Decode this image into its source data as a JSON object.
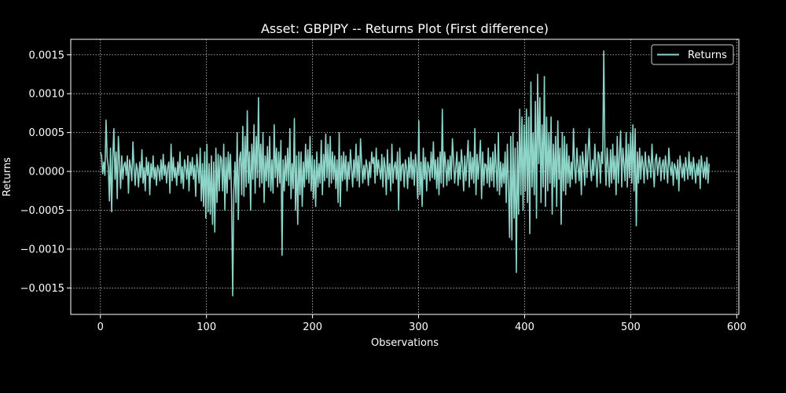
{
  "chart_data": {
    "type": "line",
    "title": "Asset: GBPJPY -- Returns Plot (First difference)",
    "xlabel": "Observations",
    "ylabel": "Returns",
    "xlim": [
      -28,
      602
    ],
    "ylim": [
      -0.00184,
      0.0017
    ],
    "xticks": [
      0,
      100,
      200,
      300,
      400,
      500,
      600
    ],
    "xtick_labels": [
      "0",
      "100",
      "200",
      "300",
      "400",
      "500",
      "600"
    ],
    "yticks": [
      -0.0015,
      -0.001,
      -0.0005,
      0.0,
      0.0005,
      0.001,
      0.0015
    ],
    "ytick_labels": [
      "−0.0015",
      "−0.0010",
      "−0.0005",
      "0.0000",
      "0.0005",
      "0.0010",
      "0.0015"
    ],
    "grid": true,
    "legend_position": "top-right",
    "series": [
      {
        "name": "Returns",
        "color": "#8dd3c7",
        "x_start": 0,
        "values": [
          0.00025,
          0.0002,
          -3e-05,
          0.00012,
          -5e-05,
          0.00066,
          0.00018,
          6e-05,
          -0.00038,
          0.0003,
          -0.00052,
          0.00018,
          0.00055,
          -0.0001,
          0.00025,
          -0.00035,
          0.00045,
          0.00012,
          -0.00022,
          0.0002,
          -0.0001,
          8e-05,
          0.00012,
          -5e-05,
          0.0002,
          -0.00028,
          0.00015,
          5e-05,
          -0.00012,
          0.00038,
          5e-05,
          -0.00018,
          0.0001,
          2e-05,
          -0.0002,
          0.00012,
          -8e-05,
          0.00028,
          -0.00015,
          5e-05,
          -0.00025,
          0.00018,
          -5e-05,
          0.00012,
          -0.0003,
          0.0001,
          -8e-05,
          0.0002,
          -0.0001,
          5e-05,
          -0.00018,
          8e-05,
          2e-05,
          -0.00012,
          0.00015,
          -0.0001,
          0.00022,
          -5e-05,
          8e-05,
          -0.00015,
          5e-05,
          0.00012,
          -0.00028,
          0.00035,
          -0.00012,
          0.00018,
          -8e-05,
          5e-05,
          -0.00018,
          0.00012,
          -5e-05,
          0.00025,
          -0.00015,
          6e-05,
          -0.00022,
          0.00015,
          5e-05,
          -0.0001,
          0.0002,
          -0.00025,
          0.00012,
          -5e-05,
          0.00018,
          -0.0001,
          8e-05,
          -0.00032,
          0.00022,
          5e-05,
          -0.00015,
          0.0003,
          -0.00038,
          0.0001,
          -0.00045,
          0.00025,
          -0.0006,
          0.00035,
          -0.00052,
          0.0001,
          -0.00055,
          0.0002,
          -0.00068,
          0.00012,
          -0.00078,
          0.0003,
          -0.0004,
          0.00022,
          -0.00025,
          0.0002,
          0.00015,
          -0.00025,
          0.00035,
          -0.0005,
          0.00018,
          -0.00028,
          0.00025,
          -0.0001,
          0.00022,
          -0.00035,
          -0.0016,
          -0.00025,
          0.00012,
          -0.0004,
          0.0005,
          -0.00062,
          0.00015,
          0.00025,
          -0.0003,
          0.00058,
          -0.00032,
          0.00045,
          -0.0002,
          0.00078,
          -0.00015,
          0.00025,
          -0.0005,
          0.00035,
          -0.0001,
          0.0006,
          -0.00028,
          0.00045,
          -8e-05,
          0.00095,
          -0.0002,
          0.00035,
          -0.00015,
          0.0005,
          -0.0004,
          0.0002,
          -0.00012,
          0.00032,
          -0.0002,
          0.00045,
          -0.00025,
          0.00015,
          -0.00028,
          0.0006,
          -8e-05,
          0.0003,
          -0.0002,
          0.00025,
          -0.00015,
          0.0004,
          -0.00108,
          0.00015,
          -0.00025,
          0.0002,
          -0.00012,
          0.0003,
          -0.00018,
          0.00055,
          -0.00035,
          0.0001,
          -0.00022,
          0.00068,
          -0.0005,
          0.0002,
          -0.00068,
          0.00025,
          -0.0003,
          0.00025,
          -0.00045,
          0.00012,
          -0.0002,
          0.00035,
          -0.0001,
          0.00028,
          -0.00015,
          0.00045,
          -0.00025,
          0.0002,
          -0.00035,
          0.00015,
          -0.00045,
          0.00025,
          -0.0002,
          0.0001,
          -0.00015,
          0.0004,
          -0.0003,
          0.00022,
          -0.00012,
          0.00048,
          -8e-05,
          0.00035,
          -0.0002,
          0.00045,
          -0.00015,
          0.00025,
          -0.0001,
          0.0002,
          -0.00022,
          0.00015,
          -0.0004,
          0.0005,
          -0.00045,
          0.0002,
          -0.00012,
          0.00025,
          -0.0001,
          0.0002,
          -0.00025,
          0.00012,
          -0.0001,
          0.00028,
          5e-05,
          -0.0002,
          0.00015,
          -8e-05,
          0.00035,
          -0.00012,
          0.0002,
          -0.0002,
          0.00042,
          0.00012,
          -0.00015,
          8e-05,
          -0.0001,
          0.00015,
          5e-05,
          -0.00018,
          0.00012,
          -8e-05,
          0.00025,
          0.0001,
          0.00018,
          -0.00015,
          0.0003,
          -5e-05,
          0.00015,
          2e-05,
          -0.0001,
          0.00022,
          -0.0002,
          0.00018,
          5e-05,
          -0.0003,
          0.00028,
          -0.0001,
          0.0001,
          -0.00025,
          0.00035,
          -0.00015,
          5e-05,
          0.00012,
          -0.0001,
          0.00025,
          -0.0005,
          0.0003,
          -0.00012,
          8e-05,
          0.0001,
          -0.0002,
          0.00015,
          5e-05,
          -0.00022,
          0.00018,
          -8e-05,
          0.00025,
          -0.0001,
          0.00015,
          -0.00018,
          0.00022,
          5e-05,
          -0.00035,
          0.00065,
          -0.0003,
          0.00012,
          -0.00045,
          0.0003,
          -0.0001,
          0.00018,
          -0.00025,
          0.00012,
          5e-05,
          -0.00012,
          0.00025,
          -8e-05,
          0.00038,
          -0.0001,
          0.00015,
          -0.00022,
          0.00018,
          -0.0003,
          0.00025,
          -0.00015,
          0.0008,
          -0.0002,
          0.00025,
          0.0001,
          -0.00018,
          0.00015,
          -0.00012,
          0.0002,
          -0.0001,
          0.00042,
          0.00015,
          -0.00015,
          5e-05,
          0.00025,
          -0.00018,
          0.00012,
          -0.0001,
          0.00028,
          8e-05,
          -0.00025,
          0.0002,
          -0.00012,
          0.00015,
          0.0004,
          -0.0002,
          0.00025,
          -0.0001,
          0.00018,
          -0.00015,
          0.00055,
          -0.0003,
          0.00022,
          -0.0001,
          0.00015,
          0.0004,
          -0.00035,
          0.00025,
          -0.00018,
          0.0001,
          8e-05,
          -0.00015,
          0.0003,
          -0.0002,
          0.00018,
          -0.00012,
          0.00025,
          -0.0002,
          0.00035,
          5e-05,
          -0.00025,
          0.0005,
          -0.0003,
          0.00012,
          -0.0002,
          0.0001,
          -0.00015,
          0.00025,
          -0.0004,
          0.00035,
          -0.0002,
          -0.00085,
          0.00045,
          -0.00088,
          0.0005,
          -0.0006,
          0.0003,
          -0.0013,
          0.00038,
          -0.00055,
          0.0008,
          -0.0003,
          0.0007,
          -0.0005,
          0.0006,
          -0.00025,
          0.0008,
          -0.0004,
          0.0007,
          -0.0008,
          0.00115,
          -0.0002,
          0.0005,
          -0.0003,
          0.0009,
          -0.0006,
          0.00125,
          0.0001,
          0.00095,
          -0.0004,
          0.0006,
          -0.0002,
          0.00122,
          -0.00045,
          0.0007,
          -0.00025,
          0.0005,
          -0.00015,
          0.0007,
          -0.00055,
          0.00035,
          -0.0002,
          0.00045,
          -0.00045,
          0.00065,
          -0.0001,
          0.0003,
          -0.00068,
          0.0005,
          -0.00025,
          0.00045,
          -0.0003,
          0.00035,
          -0.00015,
          0.0002,
          -0.0002,
          0.00012,
          -0.0001,
          0.00055,
          5e-05,
          -0.00015,
          0.0003,
          8e-05,
          -0.00012,
          0.0002,
          -0.0003,
          0.00025,
          0.0001,
          -0.00018,
          0.00035,
          -8e-05,
          0.00025,
          0.00055,
          5e-05,
          -0.00012,
          0.00015,
          -5e-05,
          0.00035,
          0.0001,
          -0.0002,
          0.00025,
          0.0002,
          -0.00015,
          0.00025,
          0.0001,
          0.00155,
          0.00025,
          -0.00018,
          0.0003,
          5e-05,
          -0.0002,
          0.00028,
          -0.00015,
          0.00035,
          -0.0001,
          0.0002,
          -0.0003,
          0.00045,
          -0.00015,
          0.0002,
          0.00052,
          -0.0002,
          0.0003,
          0.0001,
          -0.00012,
          0.0005,
          -0.0002,
          0.00035,
          -8e-05,
          0.0005,
          -0.00015,
          0.0006,
          -0.00025,
          0.00055,
          -0.0007,
          0.00025,
          -0.00015,
          0.0003,
          -0.0001,
          0.0002,
          0.0001,
          -0.00015,
          0.00025,
          5e-05,
          -0.0001,
          0.0002,
          0.00012,
          -8e-05,
          0.00035,
          5e-05,
          -0.0002,
          0.00015,
          0.00022,
          -5e-05,
          0.0001,
          0.00018,
          -0.00012,
          8e-05,
          0.00015,
          -0.0001,
          0.0002,
          5e-05,
          -0.00015,
          0.0003,
          8e-05,
          -5e-05,
          0.00012,
          -0.00018,
          0.0001,
          5e-05,
          -0.0001,
          0.00015,
          -0.00025,
          0.0002,
          5e-05,
          -8e-05,
          0.0001,
          -0.00012,
          0.00018,
          5e-05,
          -0.0001,
          0.00025,
          -5e-05,
          0.00012,
          -0.0001,
          0.00018,
          2e-05,
          -0.00015,
          0.0001,
          -5e-05,
          0.00015,
          -0.00022,
          0.0002,
          5e-05,
          -8e-05,
          0.00012,
          -0.0001,
          0.00018,
          -0.00015,
          0.0001
        ]
      }
    ]
  }
}
